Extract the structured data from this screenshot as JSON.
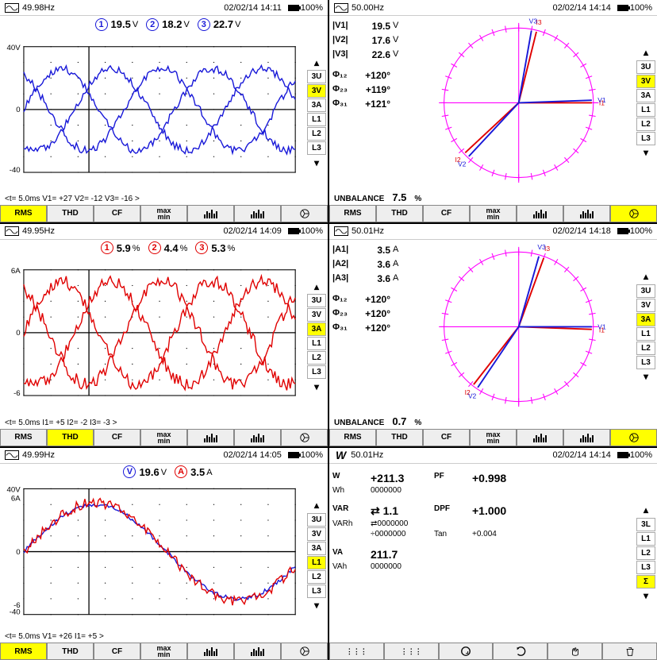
{
  "panels": [
    {
      "icon": "wave",
      "freq": "49.98Hz",
      "datetime": "02/02/14  14:11",
      "batt": "100%",
      "header": {
        "channels": [
          {
            "n": "1",
            "color": "#1818d8",
            "val": "19.5",
            "unit": "V"
          },
          {
            "n": "2",
            "color": "#1818d8",
            "val": "18.2",
            "unit": "V"
          },
          {
            "n": "3",
            "color": "#1818d8",
            "val": "22.7",
            "unit": "V"
          }
        ]
      },
      "chart": {
        "type": "waveform",
        "ytop": "40V",
        "ymid": "0",
        "ybot": "-40",
        "color": "#1818d8",
        "series": [
          {
            "amp": 0.65,
            "phase": 0
          },
          {
            "amp": 0.65,
            "phase": 2.094
          },
          {
            "amp": 0.65,
            "phase": 4.189
          }
        ],
        "noise": 0.06,
        "cycles": 1.8
      },
      "side": {
        "opts": [
          "3U",
          "3V",
          "3A",
          "L1",
          "L2",
          "L3"
        ],
        "active": "3V"
      },
      "footer": "<t=   5.0ms    V1=   +27    V2=   -12    V3=   -16           >",
      "tabs": {
        "items": [
          "RMS",
          "THD",
          "CF",
          "maxmin",
          "bars1",
          "bars2",
          "phasor"
        ],
        "active": "RMS"
      }
    },
    {
      "icon": "wave",
      "freq": "50.00Hz",
      "datetime": "02/02/14  14:14",
      "batt": "100%",
      "readings": {
        "mags": [
          {
            "lbl": "|V1|",
            "v": "19.5",
            "u": "V"
          },
          {
            "lbl": "|V2|",
            "v": "17.6",
            "u": "V"
          },
          {
            "lbl": "|V3|",
            "v": "22.6",
            "u": "V"
          }
        ],
        "angs": [
          {
            "lbl": "Φ₁₂",
            "v": "+120°"
          },
          {
            "lbl": "Φ₂₃",
            "v": "+119°"
          },
          {
            "lbl": "Φ₃₁",
            "v": "+121°"
          }
        ]
      },
      "phasor": {
        "vectors": [
          {
            "ang": 0,
            "c": "#e00000",
            "lbl": "I1"
          },
          {
            "ang": 2,
            "c": "#1818d8",
            "lbl": "V1"
          },
          {
            "ang": 76,
            "c": "#e00000",
            "lbl": "I3"
          },
          {
            "ang": 80,
            "c": "#1818d8",
            "lbl": "V3"
          },
          {
            "ang": 223,
            "c": "#e00000",
            "lbl": "I2"
          },
          {
            "ang": 227,
            "c": "#1818d8",
            "lbl": "V2"
          }
        ],
        "ring": "#ff00ff"
      },
      "side": {
        "opts": [
          "3U",
          "3V",
          "3A",
          "L1",
          "L2",
          "L3"
        ],
        "active": "3V"
      },
      "unbalance": "7.5",
      "tabs": {
        "items": [
          "RMS",
          "THD",
          "CF",
          "maxmin",
          "bars1",
          "bars2",
          "phasor"
        ],
        "active": "phasor"
      }
    },
    {
      "icon": "wave",
      "freq": "49.95Hz",
      "datetime": "02/02/14  14:09",
      "batt": "100%",
      "header": {
        "channels": [
          {
            "n": "1",
            "color": "#e00000",
            "val": "5.9",
            "unit": "%"
          },
          {
            "n": "2",
            "color": "#e00000",
            "val": "4.4",
            "unit": "%"
          },
          {
            "n": "3",
            "color": "#e00000",
            "val": "5.3",
            "unit": "%"
          }
        ]
      },
      "chart": {
        "type": "waveform",
        "ytop": "6A",
        "ymid": "0",
        "ybot": "-6",
        "color": "#e00000",
        "series": [
          {
            "amp": 0.82,
            "phase": 0
          },
          {
            "amp": 0.82,
            "phase": 2.094
          },
          {
            "amp": 0.82,
            "phase": 4.189
          }
        ],
        "noise": 0.1,
        "cycles": 1.8
      },
      "side": {
        "opts": [
          "3U",
          "3V",
          "3A",
          "L1",
          "L2",
          "L3"
        ],
        "active": "3A"
      },
      "footer": "<t=   5.0ms    I1=    +5    I2=    -2    I3=    -3             >",
      "tabs": {
        "items": [
          "RMS",
          "THD",
          "CF",
          "maxmin",
          "bars1",
          "bars2",
          "phasor"
        ],
        "active": "THD"
      }
    },
    {
      "icon": "wave",
      "freq": "50.01Hz",
      "datetime": "02/02/14  14:18",
      "batt": "100%",
      "readings": {
        "mags": [
          {
            "lbl": "|A1|",
            "v": "3.5",
            "u": "A"
          },
          {
            "lbl": "|A2|",
            "v": "3.6",
            "u": "A"
          },
          {
            "lbl": "|A3|",
            "v": "3.6",
            "u": "A"
          }
        ],
        "angs": [
          {
            "lbl": "Φ₁₂",
            "v": "+120°"
          },
          {
            "lbl": "Φ₂₃",
            "v": "+120°"
          },
          {
            "lbl": "Φ₃₁",
            "v": "+120°"
          }
        ]
      },
      "phasor": {
        "vectors": [
          {
            "ang": -2,
            "c": "#e00000",
            "lbl": "I1"
          },
          {
            "ang": 0,
            "c": "#1818d8",
            "lbl": "V1"
          },
          {
            "ang": 70,
            "c": "#e00000",
            "lbl": "I3"
          },
          {
            "ang": 74,
            "c": "#1818d8",
            "lbl": "V3"
          },
          {
            "ang": 232,
            "c": "#e00000",
            "lbl": "I2"
          },
          {
            "ang": 236,
            "c": "#1818d8",
            "lbl": "V2"
          }
        ],
        "ring": "#ff00ff"
      },
      "side": {
        "opts": [
          "3U",
          "3V",
          "3A",
          "L1",
          "L2",
          "L3"
        ],
        "active": "3A"
      },
      "unbalance": "0.7",
      "tabs": {
        "items": [
          "RMS",
          "THD",
          "CF",
          "maxmin",
          "bars1",
          "bars2",
          "phasor"
        ],
        "active": "phasor"
      }
    },
    {
      "icon": "wave",
      "freq": "49.99Hz",
      "datetime": "02/02/14  14:05",
      "batt": "100%",
      "header": {
        "channels": [
          {
            "n": "V",
            "color": "#1818d8",
            "val": "19.6",
            "unit": "V"
          },
          {
            "n": "A",
            "color": "#e00000",
            "val": "3.5",
            "unit": "A"
          }
        ]
      },
      "chart": {
        "type": "waveform-dual",
        "ytop": "40V",
        "ytop2": "6A",
        "ymid": "0",
        "ybot": "-40",
        "ybot2": "-6",
        "series": [
          {
            "amp": 0.75,
            "phase": 0,
            "color": "#1818d8",
            "noise": 0.03
          },
          {
            "amp": 0.78,
            "phase": 0,
            "color": "#e00000",
            "noise": 0.08
          }
        ],
        "cycles": 0.95
      },
      "side": {
        "opts": [
          "3U",
          "3V",
          "3A",
          "L1",
          "L2",
          "L3"
        ],
        "active": "L1"
      },
      "footer": "<t=   5.0ms    V1=   +26    I1=    +5                              >",
      "tabs": {
        "items": [
          "RMS",
          "THD",
          "CF",
          "maxmin",
          "bars1",
          "bars2",
          "phasor"
        ],
        "active": "RMS"
      }
    },
    {
      "icon": "W",
      "freq": "50.01Hz",
      "datetime": "02/02/14  14:14",
      "batt": "100%",
      "power": {
        "rows": [
          {
            "l1": "W",
            "v1": "+211.3",
            "l2": "PF",
            "v2": "+0.998"
          },
          {
            "l1": "Wh",
            "v1": "0000000",
            "sub": true
          },
          {
            "spacer": true
          },
          {
            "l1": "VAR",
            "v1": "⇄   1.1",
            "l2": "DPF",
            "v2": "+1.000"
          },
          {
            "l1": "VARh",
            "v1": "⇄0000000",
            "sub": true
          },
          {
            "l1": "",
            "v1": "÷0000000",
            "sub": true,
            "l2": "Tan",
            "v2": "+0.004"
          },
          {
            "spacer": true
          },
          {
            "l1": "VA",
            "v1": "211.7"
          },
          {
            "l1": "VAh",
            "v1": "0000000",
            "sub": true
          }
        ]
      },
      "side": {
        "opts": [
          "3L",
          "L1",
          "L2",
          "L3",
          "Σ"
        ],
        "active": "Σ"
      },
      "tabs": {
        "items": [
          "...",
          "...",
          "G",
          "C",
          "hand",
          "trash"
        ],
        "active": ""
      }
    }
  ]
}
